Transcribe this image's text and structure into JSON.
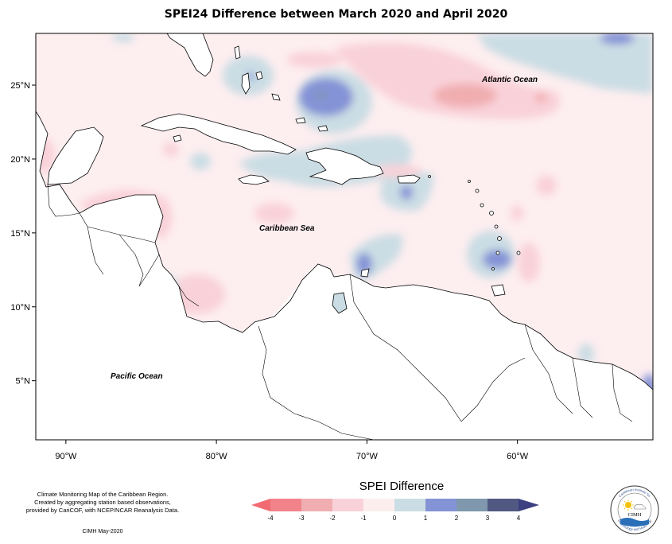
{
  "map": {
    "title": "SPEI24 Difference between March 2020 and April 2020",
    "lon_ticks": [
      "90°W",
      "80°W",
      "70°W",
      "60°W"
    ],
    "lat_ticks": [
      "5°N",
      "10°N",
      "15°N",
      "20°N",
      "25°N"
    ],
    "lon_range": [
      -92,
      -51
    ],
    "lat_range": [
      1,
      28.5
    ],
    "labels": {
      "atlantic": "Atlantic Ocean",
      "caribbean": "Caribbean Sea",
      "pacific": "Pacific Ocean"
    }
  },
  "legend": {
    "title": "SPEI Difference",
    "ticks": [
      "-4",
      "-3",
      "-2",
      "-1",
      "0",
      "1",
      "2",
      "3",
      "4"
    ],
    "colors": [
      "#f2838a",
      "#f0aeb1",
      "#f9d2d9",
      "#fdeeee",
      "#cbdde4",
      "#8493d6",
      "#7f98ad",
      "#515982"
    ],
    "arrow_colors": {
      "low": "#f26b72",
      "high": "#3c3f80"
    }
  },
  "credits": {
    "line1": "Climate Monitoring Map of the Caribbean Region.",
    "line2": "Created by aggregating station based observations,",
    "line3": "provided by CariCOF, with NCEP/NCAR Reanalysis Data.",
    "date": "CIMH May-2020"
  },
  "logo": {
    "name": "CIMH",
    "ring_text_top": "Caribbean Institute for",
    "ring_text_bottom": "Meteorology and Hydrology"
  }
}
